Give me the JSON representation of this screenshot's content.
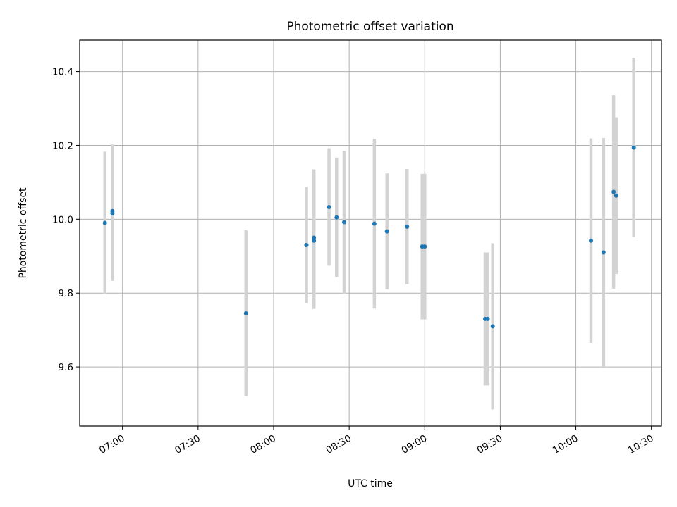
{
  "chart_data": {
    "type": "scatter",
    "title": "Photometric offset variation",
    "xlabel": "UTC time",
    "ylabel": "Photometric offset",
    "x_ticks": [
      "07:00",
      "07:30",
      "08:00",
      "08:30",
      "09:00",
      "09:30",
      "10:00",
      "10:30"
    ],
    "y_ticks": [
      "9.6",
      "9.8",
      "10.0",
      "10.2",
      "10.4"
    ],
    "xlim": [
      "06:43",
      "10:34"
    ],
    "ylim": [
      9.44,
      10.485
    ],
    "grid": true,
    "colors": {
      "points": "#1f77b4",
      "error_bars": "#d3d3d3",
      "grid": "#b0b0b0"
    },
    "series": [
      {
        "points": [
          {
            "x": "06:53",
            "y": 9.99,
            "err": 0.193
          },
          {
            "x": "06:56",
            "y": 10.022,
            "err": 0.18
          },
          {
            "x": "06:56",
            "y": 10.016,
            "err": 0.183
          },
          {
            "x": "07:49",
            "y": 9.745,
            "err": 0.225
          },
          {
            "x": "08:13",
            "y": 9.93,
            "err": 0.157
          },
          {
            "x": "08:13",
            "y": 9.93,
            "err": 0.157
          },
          {
            "x": "08:16",
            "y": 9.95,
            "err": 0.185
          },
          {
            "x": "08:16",
            "y": 9.942,
            "err": 0.185
          },
          {
            "x": "08:22",
            "y": 10.033,
            "err": 0.159
          },
          {
            "x": "08:25",
            "y": 10.005,
            "err": 0.162
          },
          {
            "x": "08:28",
            "y": 9.992,
            "err": 0.193
          },
          {
            "x": "08:40",
            "y": 9.988,
            "err": 0.23
          },
          {
            "x": "08:45",
            "y": 9.967,
            "err": 0.157
          },
          {
            "x": "08:53",
            "y": 9.98,
            "err": 0.156
          },
          {
            "x": "08:59",
            "y": 9.926,
            "err": 0.197
          },
          {
            "x": "09:00",
            "y": 9.926,
            "err": 0.197
          },
          {
            "x": "09:24",
            "y": 9.73,
            "err": 0.18
          },
          {
            "x": "09:25",
            "y": 9.73,
            "err": 0.18
          },
          {
            "x": "09:27",
            "y": 9.71,
            "err": 0.225
          },
          {
            "x": "10:06",
            "y": 9.942,
            "err": 0.277
          },
          {
            "x": "10:11",
            "y": 9.91,
            "err": 0.31
          },
          {
            "x": "10:15",
            "y": 10.074,
            "err": 0.262
          },
          {
            "x": "10:16",
            "y": 10.064,
            "err": 0.212
          },
          {
            "x": "10:16",
            "y": 10.064,
            "err": 0.212
          },
          {
            "x": "10:23",
            "y": 10.194,
            "err": 0.243
          }
        ]
      }
    ]
  }
}
